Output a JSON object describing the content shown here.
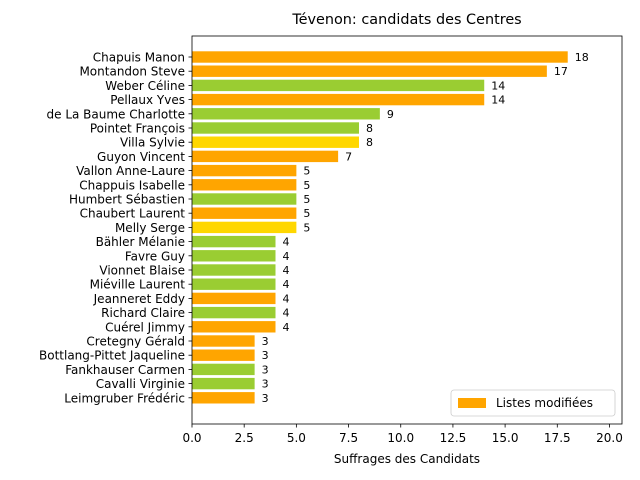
{
  "chart_data": {
    "type": "bar",
    "orientation": "horizontal",
    "title": "Tévenon: candidats des Centres",
    "xlabel": "Suffrages des Candidats",
    "ylabel": "",
    "xlim": [
      0,
      20.6
    ],
    "xticks": [
      "0.0",
      "2.5",
      "5.0",
      "7.5",
      "10.0",
      "12.5",
      "15.0",
      "17.5",
      "20.0"
    ],
    "xtick_values": [
      0,
      2.5,
      5,
      7.5,
      10,
      12.5,
      15,
      17.5,
      20
    ],
    "grid": false,
    "legend": {
      "position": "lower-right",
      "entries": [
        {
          "label": "Listes modifiées",
          "color": "#FFA500"
        }
      ]
    },
    "colors": {
      "orange": "#FFA500",
      "green": "#9ACD32",
      "gold": "#FFD700"
    },
    "categories": [
      "Chapuis Manon",
      "Montandon Steve",
      "Weber Céline",
      "Pellaux Yves",
      "de La Baume Charlotte",
      "Pointet François",
      "Villa Sylvie",
      "Guyon Vincent",
      "Vallon Anne-Laure",
      "Chappuis Isabelle",
      "Humbert Sébastien",
      "Chaubert Laurent",
      "Melly Serge",
      "Bähler Mélanie",
      "Favre Guy",
      "Vionnet Blaise",
      "Miéville Laurent",
      "Jeanneret Eddy",
      "Richard Claire",
      "Cuérel Jimmy",
      "Cretegny Gérald",
      "Bottlang-Pittet Jaqueline",
      "Fankhauser Carmen",
      "Cavalli Virginie",
      "Leimgruber Frédéric"
    ],
    "values": [
      18,
      17,
      14,
      14,
      9,
      8,
      8,
      7,
      5,
      5,
      5,
      5,
      5,
      4,
      4,
      4,
      4,
      4,
      4,
      4,
      3,
      3,
      3,
      3,
      3
    ],
    "bar_colors": [
      "orange",
      "orange",
      "green",
      "orange",
      "green",
      "green",
      "gold",
      "orange",
      "orange",
      "orange",
      "green",
      "orange",
      "gold",
      "green",
      "green",
      "green",
      "green",
      "orange",
      "green",
      "orange",
      "orange",
      "orange",
      "green",
      "green",
      "orange"
    ]
  }
}
